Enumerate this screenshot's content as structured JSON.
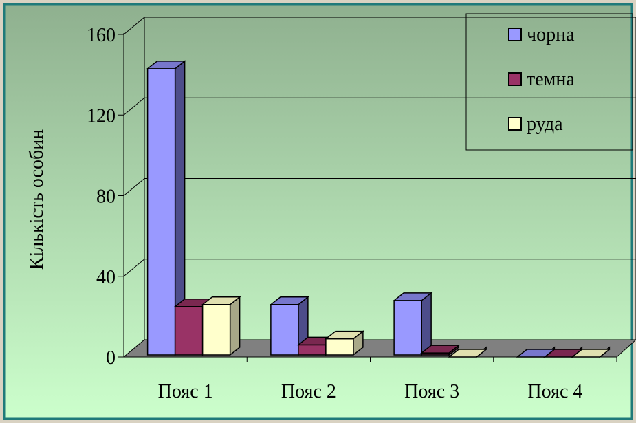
{
  "chart_data": {
    "type": "bar",
    "title": "",
    "xlabel": "",
    "ylabel": "Кількість особин",
    "ylim": [
      0,
      160
    ],
    "yticks": [
      "0",
      "40",
      "80",
      "120",
      "160"
    ],
    "categories": [
      "Пояс 1",
      "Пояс 2",
      "Пояс 3",
      "Пояс 4"
    ],
    "series": [
      {
        "name": "чорна",
        "values": [
          143,
          26,
          28,
          0
        ]
      },
      {
        "name": "темна",
        "values": [
          25,
          6,
          2,
          0
        ]
      },
      {
        "name": "руда",
        "values": [
          26,
          9,
          0,
          0
        ]
      }
    ],
    "grid": true,
    "legend_position": "top-right",
    "style": "3d-clustered-column",
    "colors": {
      "series": [
        "#9999ff",
        "#993366",
        "#ffffcc"
      ],
      "series_side": [
        "#4d4d8a",
        "#5a1f3d",
        "#a8a888"
      ],
      "series_top": [
        "#7777cc",
        "#7a2850",
        "#e0e0b0"
      ],
      "background_top": "#8fb08f",
      "background_bottom": "#ccffcc",
      "floor": "#808080",
      "frame": "#1f7a7a"
    }
  }
}
